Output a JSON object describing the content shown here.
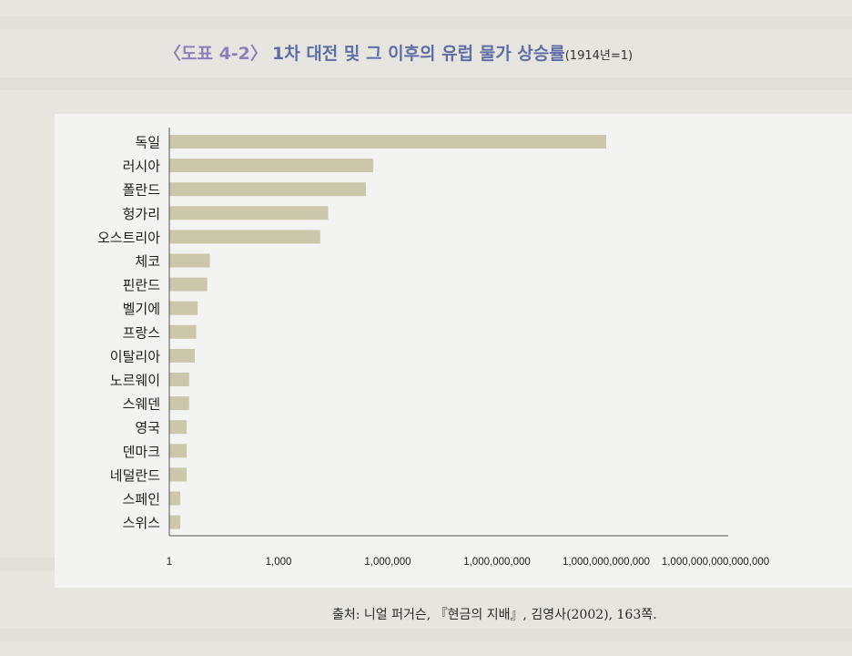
{
  "title": {
    "prefix": "〈도표 4-2〉",
    "main": "1차 대전 및 그 이후의 유럽 물가 상승률",
    "sub": "(1914년=1)"
  },
  "source": "출처: 니얼 퍼거슨, 『현금의 지배』, 김영사(2002), 163쪽.",
  "chart_data": {
    "type": "bar",
    "orientation": "horizontal",
    "scale": "log10",
    "title": "1차 대전 및 그 이후의 유럽 물가 상승률",
    "categories": [
      "독일",
      "러시아",
      "폴란드",
      "헝가리",
      "오스트리아",
      "체코",
      "핀란드",
      "벨기에",
      "프랑스",
      "이탈리아",
      "노르웨이",
      "스웨덴",
      "영국",
      "덴마크",
      "네덜란드",
      "스페인",
      "스위스"
    ],
    "values": [
      1000000000000.0,
      400000.0,
      250000.0,
      23000.0,
      14000.0,
      13,
      11,
      6,
      5.5,
      5,
      3.5,
      3.5,
      3,
      3,
      3,
      2,
      2
    ],
    "xticks": [
      1,
      1000,
      1000000,
      1000000000,
      1000000000000,
      1000000000000000
    ],
    "xtick_labels": [
      "1",
      "1,000",
      "1,000,000",
      "1,000,000,000",
      "1,000,000,000,000",
      "1,000,000,000,000,000"
    ],
    "xlim": [
      1,
      1000000000000000
    ],
    "bar_color": "#cbc7ab",
    "grid": false
  }
}
